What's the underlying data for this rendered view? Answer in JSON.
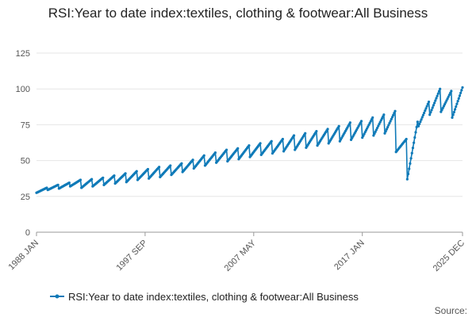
{
  "chart_data": {
    "type": "line",
    "title": "RSI:Year to date index:textiles, clothing & footwear:All Business",
    "xlabel": "",
    "ylabel": "",
    "ylim": [
      0,
      125
    ],
    "yticks": [
      0,
      25,
      50,
      75,
      100,
      125
    ],
    "xlim": [
      "1988 JAN",
      "2025 DEC"
    ],
    "xticks": [
      "1988 JAN",
      "1997 SEP",
      "2007 MAY",
      "2017 JAN",
      "2025 DEC"
    ],
    "grid": true,
    "legend": "bottom",
    "source_label": "Source:",
    "series": [
      {
        "name": "RSI:Year to date index:textiles, clothing & footwear:All Business",
        "color": "#0f7ab8",
        "marker": "circle",
        "frequency": "monthly",
        "start": "1988 JAN",
        "annual_points": [
          {
            "year": 1988,
            "start": 27.5,
            "end": 31.0
          },
          {
            "year": 1989,
            "start": 29.5,
            "end": 33.0
          },
          {
            "year": 1990,
            "start": 30.5,
            "end": 34.5
          },
          {
            "year": 1991,
            "start": 32.0,
            "end": 36.5
          },
          {
            "year": 1992,
            "start": 31.0,
            "end": 37.0
          },
          {
            "year": 1993,
            "start": 32.0,
            "end": 38.0
          },
          {
            "year": 1994,
            "start": 33.0,
            "end": 39.5
          },
          {
            "year": 1995,
            "start": 34.0,
            "end": 41.0
          },
          {
            "year": 1996,
            "start": 35.0,
            "end": 42.5
          },
          {
            "year": 1997,
            "start": 36.5,
            "end": 44.0
          },
          {
            "year": 1998,
            "start": 37.5,
            "end": 45.5
          },
          {
            "year": 1999,
            "start": 38.5,
            "end": 46.5
          },
          {
            "year": 2000,
            "start": 40.0,
            "end": 48.0
          },
          {
            "year": 2001,
            "start": 42.0,
            "end": 50.5
          },
          {
            "year": 2002,
            "start": 44.5,
            "end": 53.5
          },
          {
            "year": 2003,
            "start": 46.5,
            "end": 55.5
          },
          {
            "year": 2004,
            "start": 48.5,
            "end": 57.5
          },
          {
            "year": 2005,
            "start": 49.5,
            "end": 58.5
          },
          {
            "year": 2006,
            "start": 51.0,
            "end": 60.5
          },
          {
            "year": 2007,
            "start": 52.5,
            "end": 62.0
          },
          {
            "year": 2008,
            "start": 54.0,
            "end": 63.5
          },
          {
            "year": 2009,
            "start": 55.0,
            "end": 65.0
          },
          {
            "year": 2010,
            "start": 56.5,
            "end": 67.5
          },
          {
            "year": 2011,
            "start": 57.5,
            "end": 69.0
          },
          {
            "year": 2012,
            "start": 59.0,
            "end": 70.5
          },
          {
            "year": 2013,
            "start": 60.5,
            "end": 72.0
          },
          {
            "year": 2014,
            "start": 62.0,
            "end": 74.0
          },
          {
            "year": 2015,
            "start": 63.5,
            "end": 76.5
          },
          {
            "year": 2016,
            "start": 64.5,
            "end": 77.5
          },
          {
            "year": 2017,
            "start": 66.0,
            "end": 80.0
          },
          {
            "year": 2018,
            "start": 67.5,
            "end": 82.0
          },
          {
            "year": 2019,
            "start": 69.0,
            "end": 84.5
          },
          {
            "year": 2020,
            "start": 56.0,
            "end": 65.0
          },
          {
            "year": 2021,
            "start": 37.0,
            "end": 77.0
          },
          {
            "year": 2022,
            "start": 74.0,
            "end": 91.0
          },
          {
            "year": 2023,
            "start": 82.0,
            "end": 100.0
          },
          {
            "year": 2024,
            "start": 84.0,
            "end": 98.5
          },
          {
            "year": 2025,
            "start": 80.0,
            "end": 101.0
          }
        ]
      }
    ]
  }
}
